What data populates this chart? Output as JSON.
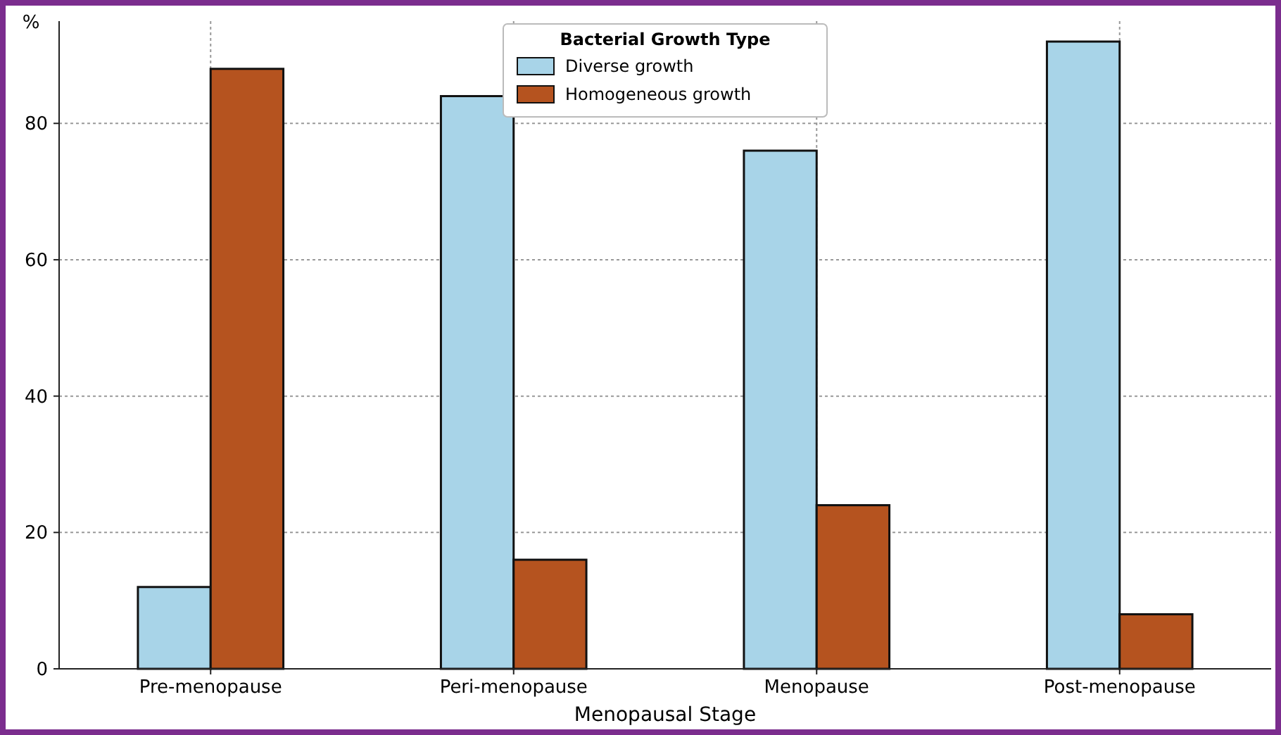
{
  "chart_data": {
    "type": "bar",
    "xlabel": "Menopausal Stage",
    "ylabel": "%",
    "legend_title": "Bacterial Growth Type",
    "categories": [
      "Pre-menopause",
      "Peri-menopause",
      "Menopause",
      "Post-menopause"
    ],
    "series": [
      {
        "name": "Diverse growth",
        "color": "#a8d4e8",
        "values": [
          12,
          84,
          76,
          92
        ]
      },
      {
        "name": "Homogeneous growth",
        "color": "#b5531f",
        "values": [
          88,
          16,
          24,
          8
        ]
      }
    ],
    "ylim": [
      0,
      95
    ],
    "yticks": [
      0,
      20,
      40,
      60,
      80
    ],
    "grid": true,
    "legend": "top"
  }
}
